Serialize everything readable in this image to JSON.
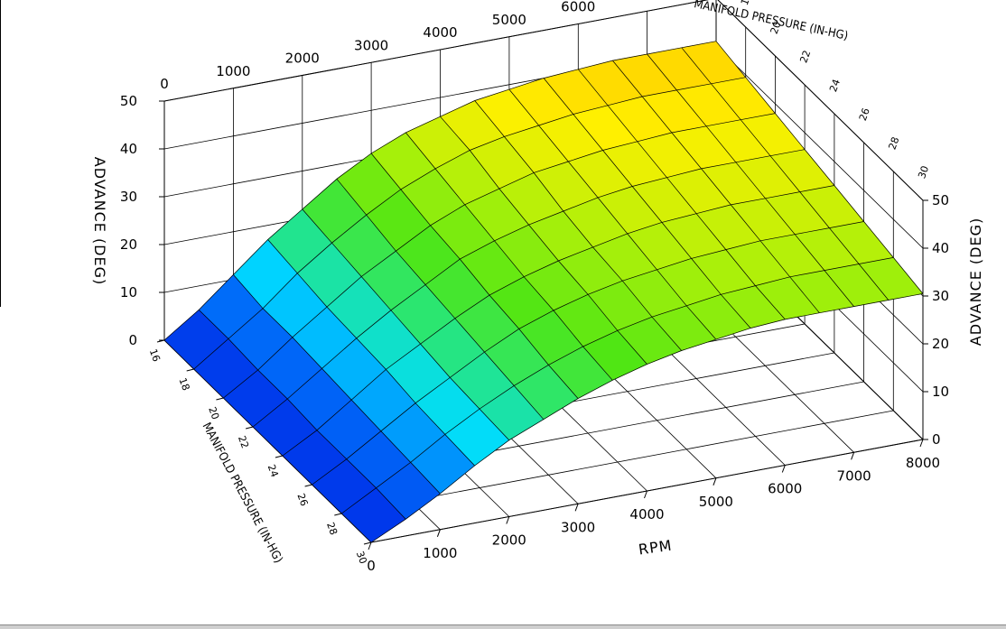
{
  "chart_data": {
    "type": "surface",
    "x_axis": {
      "label": "RPM",
      "ticks": [
        "0",
        "1000",
        "2000",
        "3000",
        "4000",
        "5000",
        "6000",
        "7000",
        "8000"
      ],
      "range": [
        0,
        8000
      ]
    },
    "y_axis": {
      "label": "MANIFOLD PRESSURE (IN-HG)",
      "ticks": [
        "16",
        "18",
        "20",
        "22",
        "24",
        "26",
        "28",
        "30"
      ],
      "range": [
        16,
        30
      ]
    },
    "z_axis": {
      "label": "ADVANCE (DEG)",
      "ticks": [
        "0",
        "10",
        "20",
        "30",
        "40",
        "50"
      ],
      "range": [
        0,
        50
      ]
    },
    "rpm": [
      0,
      500,
      1000,
      1500,
      2000,
      2500,
      3000,
      3500,
      4000,
      4500,
      5000,
      5500,
      6000,
      6500,
      7000,
      7500,
      8000
    ],
    "map": [
      16,
      18,
      20,
      22,
      24,
      26,
      28,
      30
    ],
    "advance": [
      [
        0,
        5,
        11,
        17,
        22,
        27,
        31,
        34,
        36,
        38,
        39,
        40,
        40.5,
        41,
        41,
        41,
        41
      ],
      [
        0,
        5,
        10,
        16,
        21,
        25.5,
        29.5,
        32.5,
        35,
        36.5,
        37.5,
        38.5,
        39,
        39.5,
        39.5,
        39.5,
        39.5
      ],
      [
        0,
        4.5,
        10,
        15,
        20,
        24,
        28,
        31,
        33,
        35,
        36,
        37,
        37.5,
        38,
        38,
        38,
        38
      ],
      [
        0,
        4.5,
        9.5,
        14.5,
        19,
        23,
        27,
        29.5,
        31.5,
        33,
        34.5,
        35.5,
        36,
        36.5,
        36.5,
        36.5,
        36.5
      ],
      [
        0,
        4,
        9,
        14,
        18,
        22,
        25.5,
        28,
        30,
        31.5,
        33,
        34,
        34.5,
        35,
        35,
        35,
        35
      ],
      [
        0,
        4,
        8.5,
        13,
        17,
        21,
        24.5,
        27,
        29,
        30.5,
        31.5,
        32.5,
        33,
        33.5,
        33.5,
        33.5,
        33.5
      ],
      [
        0,
        4,
        8,
        12.5,
        16.5,
        20,
        23,
        25.5,
        27.5,
        29,
        30,
        31,
        31.5,
        32,
        32,
        32,
        32
      ],
      [
        0,
        3.5,
        7.5,
        12,
        16,
        19,
        22,
        24.5,
        26.5,
        28,
        29,
        30,
        30.5,
        30.5,
        30.5,
        30.5,
        30.5
      ]
    ],
    "grid": true
  }
}
